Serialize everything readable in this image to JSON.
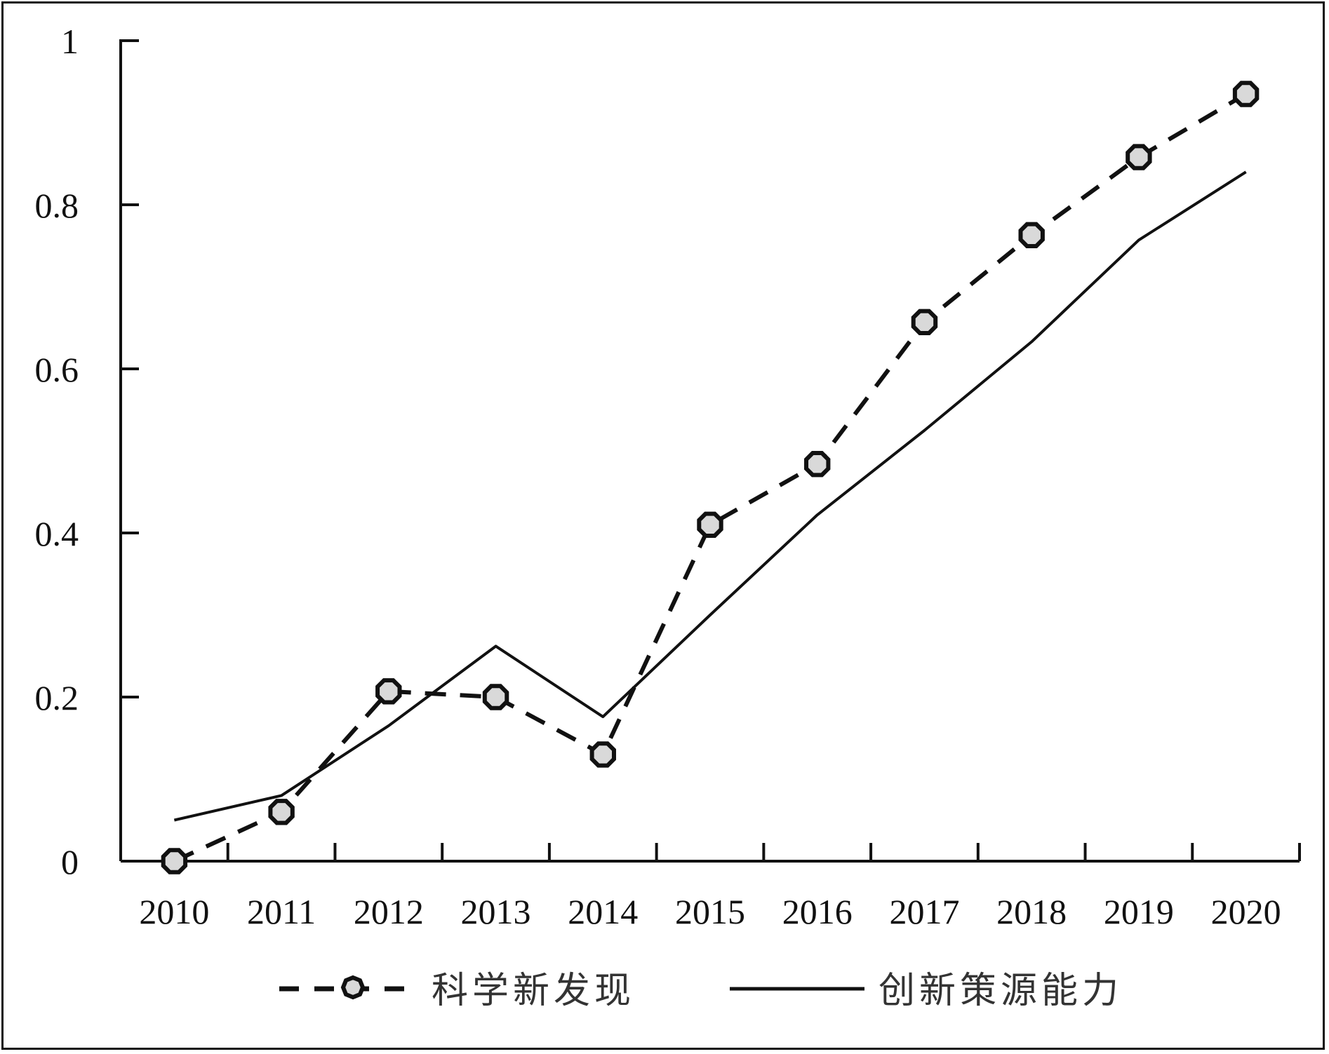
{
  "chart_data": {
    "type": "line",
    "categories": [
      "2010",
      "2011",
      "2012",
      "2013",
      "2014",
      "2015",
      "2016",
      "2017",
      "2018",
      "2019",
      "2020"
    ],
    "series": [
      {
        "name": "科学新发现",
        "style": "dashed-with-circle-markers",
        "color": "#111111",
        "marker_fill": "#d9d9d9",
        "values": [
          0.0,
          0.06,
          0.207,
          0.2,
          0.13,
          0.41,
          0.484,
          0.657,
          0.763,
          0.858,
          0.935
        ]
      },
      {
        "name": "创新策源能力",
        "style": "solid",
        "color": "#111111",
        "values": [
          0.05,
          0.08,
          0.165,
          0.262,
          0.176,
          0.3,
          0.422,
          0.525,
          0.633,
          0.757,
          0.84
        ]
      }
    ],
    "ylim": [
      0,
      1
    ],
    "yticks": [
      0,
      0.2,
      0.4,
      0.6,
      0.8,
      1
    ],
    "ytick_labels": [
      "0",
      "0.2",
      "0.4",
      "0.6",
      "0.8",
      "1"
    ],
    "title": "",
    "xlabel": "",
    "ylabel": "",
    "grid": false,
    "legend_position": "bottom"
  }
}
